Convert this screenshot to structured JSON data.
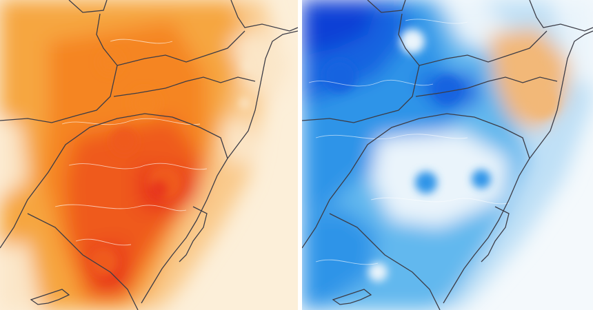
{
  "panels": [
    {
      "id": "warm",
      "colors": {
        "pale": "#fbe6c8",
        "light": "#f9c98a",
        "mid": "#f6a640",
        "strong": "#f58524",
        "hot": "#ef5a1e",
        "extreme": "#e8391a",
        "ocean": "#fcefd9"
      }
    },
    {
      "id": "cold",
      "colors": {
        "pale": "#eaf4fb",
        "light": "#bfe0f6",
        "mid": "#62b8ee",
        "strong": "#2e94e8",
        "deep": "#1864e0",
        "extreme": "#0a3fd6",
        "warm_spot": "#f2b878",
        "ocean": "#f4f9fc"
      }
    }
  ],
  "colors": {
    "border_line": "#3c3c46",
    "contour_line": "#ffffff",
    "divider": "#ffffff"
  }
}
